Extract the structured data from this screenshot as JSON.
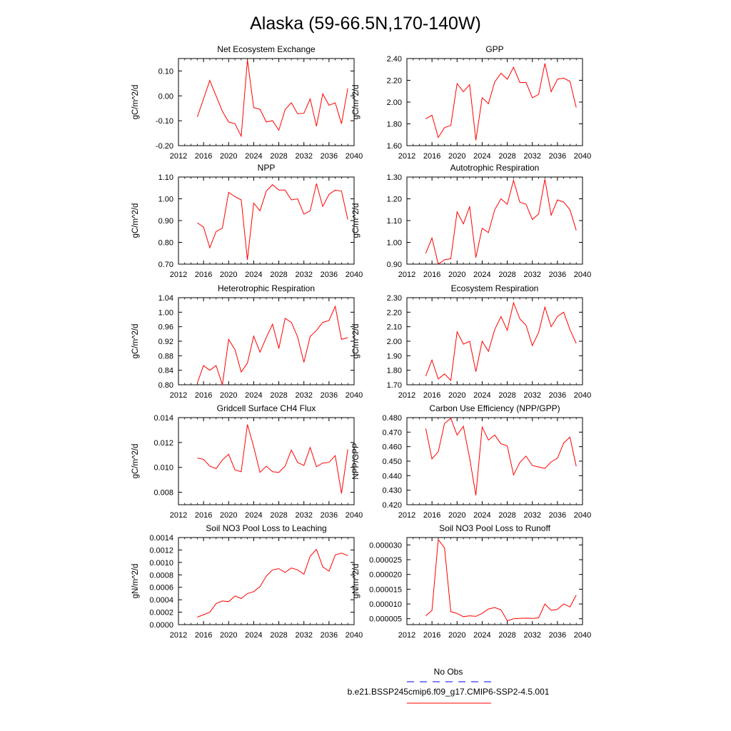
{
  "title": "Alaska (59-66.5N,170-140W)",
  "legend": {
    "entries": [
      {
        "label": "No Obs",
        "color": "#0000ff",
        "style": "dashed"
      },
      {
        "label": "b.e21.BSSP245cmip6.f09_g17.CMIP6-SSP2-4.5.001",
        "color": "#ff0000",
        "style": "solid"
      }
    ]
  },
  "chart_data": [
    {
      "type": "line",
      "title": "Net Ecosystem Exchange",
      "ylabel": "gC/m^2/d",
      "xlabel": "",
      "xlim": [
        2012,
        2040
      ],
      "ylim": [
        -0.2,
        0.15
      ],
      "xticks": [
        "2012",
        "2016",
        "2020",
        "2024",
        "2028",
        "2032",
        "2036",
        "2040"
      ],
      "yticks": [
        "-0.20",
        "-0.10",
        "0.00",
        "0.10"
      ],
      "series": [
        {
          "color": "#ff0000",
          "x": [
            2015,
            2016,
            2017,
            2018,
            2019,
            2020,
            2021,
            2022,
            2023,
            2024,
            2025,
            2026,
            2027,
            2028,
            2029,
            2030,
            2031,
            2032,
            2033,
            2034,
            2035,
            2036,
            2037,
            2038,
            2039
          ],
          "values": [
            -0.085,
            -0.012,
            0.062,
            0.0,
            -0.062,
            -0.105,
            -0.112,
            -0.162,
            0.145,
            -0.047,
            -0.054,
            -0.105,
            -0.1,
            -0.138,
            -0.055,
            -0.028,
            -0.072,
            -0.07,
            -0.012,
            -0.122,
            0.008,
            -0.038,
            -0.028,
            -0.112,
            0.03
          ]
        }
      ]
    },
    {
      "type": "line",
      "title": "GPP",
      "ylabel": "gC/m^2/d",
      "xlabel": "",
      "xlim": [
        2012,
        2040
      ],
      "ylim": [
        1.6,
        2.4
      ],
      "xticks": [
        "2012",
        "2016",
        "2020",
        "2024",
        "2028",
        "2032",
        "2036",
        "2040"
      ],
      "yticks": [
        "1.60",
        "1.80",
        "2.00",
        "2.20",
        "2.40"
      ],
      "series": [
        {
          "color": "#ff0000",
          "x": [
            2015,
            2016,
            2017,
            2018,
            2019,
            2020,
            2021,
            2022,
            2023,
            2024,
            2025,
            2026,
            2027,
            2028,
            2029,
            2030,
            2031,
            2032,
            2033,
            2034,
            2035,
            2036,
            2037,
            2038,
            2039
          ],
          "values": [
            1.845,
            1.88,
            1.675,
            1.765,
            1.785,
            2.17,
            2.095,
            2.16,
            1.65,
            2.04,
            1.985,
            2.185,
            2.265,
            2.21,
            2.32,
            2.18,
            2.18,
            2.04,
            2.07,
            2.355,
            2.095,
            2.21,
            2.22,
            2.19,
            1.95
          ]
        }
      ]
    },
    {
      "type": "line",
      "title": "NPP",
      "ylabel": "gC/m^2/d",
      "xlabel": "",
      "xlim": [
        2012,
        2040
      ],
      "ylim": [
        0.7,
        1.1
      ],
      "xticks": [
        "2012",
        "2016",
        "2020",
        "2024",
        "2028",
        "2032",
        "2036",
        "2040"
      ],
      "yticks": [
        "0.70",
        "0.80",
        "0.90",
        "1.00",
        "1.10"
      ],
      "series": [
        {
          "color": "#ff0000",
          "x": [
            2015,
            2016,
            2017,
            2018,
            2019,
            2020,
            2021,
            2022,
            2023,
            2024,
            2025,
            2026,
            2027,
            2028,
            2029,
            2030,
            2031,
            2032,
            2033,
            2034,
            2035,
            2036,
            2037,
            2038,
            2039
          ],
          "values": [
            0.89,
            0.87,
            0.775,
            0.85,
            0.865,
            1.03,
            1.01,
            0.995,
            0.72,
            0.98,
            0.945,
            1.035,
            1.065,
            1.04,
            1.04,
            0.995,
            1.0,
            0.93,
            0.945,
            1.07,
            0.965,
            1.02,
            1.04,
            1.035,
            0.905
          ]
        }
      ]
    },
    {
      "type": "line",
      "title": "Autotrophic Respiration",
      "ylabel": "gC/m^2/d",
      "xlabel": "",
      "xlim": [
        2012,
        2040
      ],
      "ylim": [
        0.9,
        1.3
      ],
      "xticks": [
        "2012",
        "2016",
        "2020",
        "2024",
        "2028",
        "2032",
        "2036",
        "2040"
      ],
      "yticks": [
        "0.90",
        "1.00",
        "1.10",
        "1.20",
        "1.30"
      ],
      "series": [
        {
          "color": "#ff0000",
          "x": [
            2015,
            2016,
            2017,
            2018,
            2019,
            2020,
            2021,
            2022,
            2023,
            2024,
            2025,
            2026,
            2027,
            2028,
            2029,
            2030,
            2031,
            2032,
            2033,
            2034,
            2035,
            2036,
            2037,
            2038,
            2039
          ],
          "values": [
            0.95,
            1.02,
            0.9,
            0.92,
            0.925,
            1.14,
            1.085,
            1.165,
            0.93,
            1.065,
            1.045,
            1.15,
            1.2,
            1.175,
            1.285,
            1.185,
            1.175,
            1.105,
            1.13,
            1.29,
            1.125,
            1.195,
            1.185,
            1.15,
            1.055
          ]
        }
      ]
    },
    {
      "type": "line",
      "title": "Heterotrophic Respiration",
      "ylabel": "gC/m^2/d",
      "xlabel": "",
      "xlim": [
        2012,
        2040
      ],
      "ylim": [
        0.8,
        1.04
      ],
      "xticks": [
        "2012",
        "2016",
        "2020",
        "2024",
        "2028",
        "2032",
        "2036",
        "2040"
      ],
      "yticks": [
        "0.80",
        "0.84",
        "0.88",
        "0.92",
        "0.96",
        "1.00",
        "1.04"
      ],
      "series": [
        {
          "color": "#ff0000",
          "x": [
            2015,
            2016,
            2017,
            2018,
            2019,
            2020,
            2021,
            2022,
            2023,
            2024,
            2025,
            2026,
            2027,
            2028,
            2029,
            2030,
            2031,
            2032,
            2033,
            2034,
            2035,
            2036,
            2037,
            2038,
            2039
          ],
          "values": [
            0.805,
            0.853,
            0.84,
            0.853,
            0.8,
            0.925,
            0.897,
            0.835,
            0.86,
            0.934,
            0.89,
            0.93,
            0.967,
            0.9,
            0.983,
            0.972,
            0.932,
            0.862,
            0.933,
            0.95,
            0.972,
            0.977,
            1.016,
            0.925,
            0.93
          ]
        }
      ]
    },
    {
      "type": "line",
      "title": "Ecosystem Respiration",
      "ylabel": "gC/m^2/d",
      "xlabel": "",
      "xlim": [
        2012,
        2040
      ],
      "ylim": [
        1.7,
        2.3
      ],
      "xticks": [
        "2012",
        "2016",
        "2020",
        "2024",
        "2028",
        "2032",
        "2036",
        "2040"
      ],
      "yticks": [
        "1.70",
        "1.80",
        "1.90",
        "2.00",
        "2.10",
        "2.20",
        "2.30"
      ],
      "series": [
        {
          "color": "#ff0000",
          "x": [
            2015,
            2016,
            2017,
            2018,
            2019,
            2020,
            2021,
            2022,
            2023,
            2024,
            2025,
            2026,
            2027,
            2028,
            2029,
            2030,
            2031,
            2032,
            2033,
            2034,
            2035,
            2036,
            2037,
            2038,
            2039
          ],
          "values": [
            1.76,
            1.87,
            1.74,
            1.775,
            1.73,
            2.065,
            1.98,
            2.0,
            1.79,
            2.0,
            1.93,
            2.08,
            2.17,
            2.075,
            2.265,
            2.155,
            2.11,
            1.97,
            2.06,
            2.235,
            2.1,
            2.17,
            2.2,
            2.08,
            1.985
          ]
        }
      ]
    },
    {
      "type": "line",
      "title": "Gridcell Surface CH4 Flux",
      "ylabel": "gC/m^2/d",
      "xlabel": "",
      "xlim": [
        2012,
        2040
      ],
      "ylim": [
        0.007,
        0.014
      ],
      "xticks": [
        "2012",
        "2016",
        "2020",
        "2024",
        "2028",
        "2032",
        "2036",
        "2040"
      ],
      "yticks": [
        "0.008",
        "0.010",
        "0.012",
        "0.014"
      ],
      "series": [
        {
          "color": "#ff0000",
          "x": [
            2015,
            2016,
            2017,
            2018,
            2019,
            2020,
            2021,
            2022,
            2023,
            2024,
            2025,
            2026,
            2027,
            2028,
            2029,
            2030,
            2031,
            2032,
            2033,
            2034,
            2035,
            2036,
            2037,
            2038,
            2039
          ],
          "values": [
            0.01075,
            0.01065,
            0.0101,
            0.0099,
            0.0106,
            0.01105,
            0.0098,
            0.00965,
            0.01345,
            0.01165,
            0.0096,
            0.0101,
            0.00965,
            0.0096,
            0.0101,
            0.0114,
            0.0104,
            0.01015,
            0.0116,
            0.01005,
            0.01035,
            0.0104,
            0.01095,
            0.0079,
            0.01145
          ]
        }
      ]
    },
    {
      "type": "line",
      "title": "Carbon Use Efficiency (NPP/GPP)",
      "ylabel": "NPP/GPP",
      "xlabel": "",
      "xlim": [
        2012,
        2040
      ],
      "ylim": [
        0.42,
        0.48
      ],
      "xticks": [
        "2012",
        "2016",
        "2020",
        "2024",
        "2028",
        "2032",
        "2036",
        "2040"
      ],
      "yticks": [
        "0.420",
        "0.430",
        "0.440",
        "0.450",
        "0.460",
        "0.470",
        "0.480"
      ],
      "series": [
        {
          "color": "#ff0000",
          "x": [
            2015,
            2016,
            2017,
            2018,
            2019,
            2020,
            2021,
            2022,
            2023,
            2024,
            2025,
            2026,
            2027,
            2028,
            2029,
            2030,
            2031,
            2032,
            2033,
            2034,
            2035,
            2036,
            2037,
            2038,
            2039
          ],
          "values": [
            0.4725,
            0.4515,
            0.4565,
            0.476,
            0.4795,
            0.468,
            0.474,
            0.452,
            0.4265,
            0.4735,
            0.4645,
            0.468,
            0.462,
            0.4605,
            0.4405,
            0.449,
            0.4535,
            0.447,
            0.446,
            0.445,
            0.4495,
            0.452,
            0.4625,
            0.4665,
            0.4465
          ]
        }
      ]
    },
    {
      "type": "line",
      "title": "Soil NO3 Pool Loss to Leaching",
      "ylabel": "gN/m^2/d",
      "xlabel": "",
      "xlim": [
        2012,
        2040
      ],
      "ylim": [
        0,
        0.0014
      ],
      "xticks": [
        "2012",
        "2016",
        "2020",
        "2024",
        "2028",
        "2032",
        "2036",
        "2040"
      ],
      "yticks": [
        "0.0000",
        "0.0002",
        "0.0004",
        "0.0006",
        "0.0008",
        "0.0010",
        "0.0012",
        "0.0014"
      ],
      "series": [
        {
          "color": "#ff0000",
          "x": [
            2015,
            2016,
            2017,
            2018,
            2019,
            2020,
            2021,
            2022,
            2023,
            2024,
            2025,
            2026,
            2027,
            2028,
            2029,
            2030,
            2031,
            2032,
            2033,
            2034,
            2035,
            2036,
            2037,
            2038,
            2039
          ],
          "values": [
            0.00012,
            0.00016,
            0.0002,
            0.00034,
            0.00038,
            0.00037,
            0.00046,
            0.00042,
            0.0005,
            0.00053,
            0.00061,
            0.00078,
            0.00088,
            0.0009,
            0.00084,
            0.00091,
            0.00088,
            0.00081,
            0.0011,
            0.00121,
            0.00093,
            0.00086,
            0.00112,
            0.00115,
            0.00111
          ]
        }
      ]
    },
    {
      "type": "line",
      "title": "Soil NO3 Pool Loss to Runoff",
      "ylabel": "gN/m^2/d",
      "xlabel": "",
      "xlim": [
        2012,
        2040
      ],
      "ylim": [
        3e-06,
        3.25e-05
      ],
      "xticks": [
        "2012",
        "2016",
        "2020",
        "2024",
        "2028",
        "2032",
        "2036",
        "2040"
      ],
      "yticks": [
        "0.000005",
        "0.000010",
        "0.000015",
        "0.000020",
        "0.000025",
        "0.000030"
      ],
      "series": [
        {
          "color": "#ff0000",
          "x": [
            2015,
            2016,
            2017,
            2018,
            2019,
            2020,
            2021,
            2022,
            2023,
            2024,
            2025,
            2026,
            2027,
            2028,
            2029,
            2030,
            2031,
            2032,
            2033,
            2034,
            2035,
            2036,
            2037,
            2038,
            2039
          ],
          "values": [
            6e-06,
            7.8e-06,
            3.18e-05,
            2.9e-05,
            7.4e-06,
            6.8e-06,
            5.7e-06,
            6e-06,
            5.8e-06,
            6.8e-06,
            8.3e-06,
            8.8e-06,
            8e-06,
            4.3e-06,
            5e-06,
            5.1e-06,
            5.2e-06,
            5.1e-06,
            5.3e-06,
            1e-05,
            7.8e-06,
            8.2e-06,
            1e-05,
            9e-06,
            1.3e-05
          ]
        }
      ]
    }
  ]
}
